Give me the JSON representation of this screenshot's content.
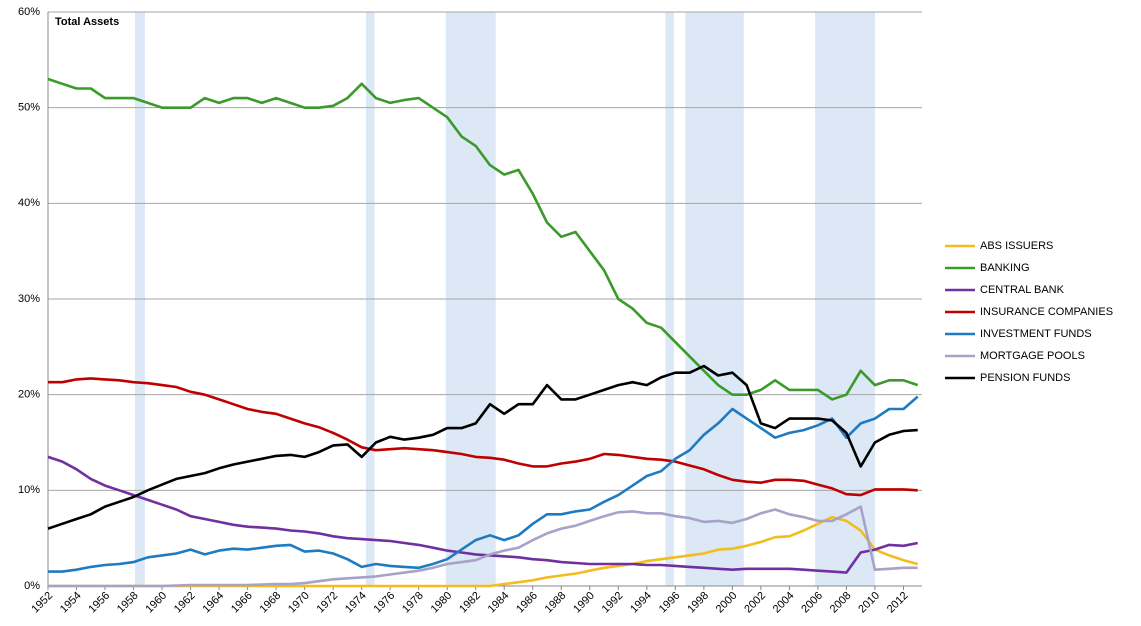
{
  "chart_data": {
    "type": "line",
    "title": "Total Assets",
    "x": [
      1952,
      1953,
      1954,
      1955,
      1956,
      1957,
      1958,
      1959,
      1960,
      1961,
      1962,
      1963,
      1964,
      1965,
      1966,
      1967,
      1968,
      1969,
      1970,
      1971,
      1972,
      1973,
      1974,
      1975,
      1976,
      1977,
      1978,
      1979,
      1980,
      1981,
      1982,
      1983,
      1984,
      1985,
      1986,
      1987,
      1988,
      1989,
      1990,
      1991,
      1992,
      1993,
      1994,
      1995,
      1996,
      1997,
      1998,
      1999,
      2000,
      2001,
      2002,
      2003,
      2004,
      2005,
      2006,
      2007,
      2008,
      2009,
      2010,
      2011,
      2012,
      2013
    ],
    "series": [
      {
        "name": "ABS ISSUERS",
        "color": "#f2bd1d",
        "values": [
          0,
          0,
          0,
          0,
          0,
          0,
          0,
          0,
          0,
          0,
          0,
          0,
          0,
          0,
          0,
          0,
          0,
          0,
          0,
          0,
          0,
          0,
          0,
          0,
          0,
          0,
          0,
          0,
          0,
          0,
          0,
          0,
          0.2,
          0.4,
          0.6,
          0.9,
          1.1,
          1.3,
          1.6,
          1.9,
          2.1,
          2.3,
          2.6,
          2.8,
          3,
          3.2,
          3.4,
          3.8,
          3.9,
          4.2,
          4.6,
          5.1,
          5.2,
          5.8,
          6.5,
          7.2,
          6.8,
          5.8,
          3.8,
          3.2,
          2.7,
          2.3
        ]
      },
      {
        "name": "BANKING",
        "color": "#3a9a2a",
        "values": [
          53,
          52.5,
          52,
          52,
          51,
          51,
          51,
          50.5,
          50,
          50,
          50,
          51,
          50.5,
          51,
          51,
          50.5,
          51,
          50.5,
          50,
          50,
          50.2,
          51,
          52.5,
          51,
          50.5,
          50.8,
          51,
          50,
          49,
          47,
          46,
          44,
          43,
          43.5,
          41,
          38,
          36.5,
          37,
          35,
          33,
          30,
          29,
          27.5,
          27,
          25.5,
          24,
          22.5,
          21,
          20,
          20,
          20.5,
          21.5,
          20.5,
          20.5,
          20.5,
          19.5,
          20,
          22.5,
          21,
          21.5,
          21.5,
          21
        ]
      },
      {
        "name": "CENTRAL BANK",
        "color": "#7030a0",
        "values": [
          13.5,
          13,
          12.2,
          11.2,
          10.5,
          10,
          9.5,
          9,
          8.5,
          8,
          7.3,
          7,
          6.7,
          6.4,
          6.2,
          6.1,
          6,
          5.8,
          5.7,
          5.5,
          5.2,
          5,
          4.9,
          4.8,
          4.7,
          4.5,
          4.3,
          4,
          3.7,
          3.5,
          3.3,
          3.2,
          3.1,
          3,
          2.8,
          2.7,
          2.5,
          2.4,
          2.3,
          2.3,
          2.3,
          2.3,
          2.2,
          2.2,
          2.1,
          2,
          1.9,
          1.8,
          1.7,
          1.8,
          1.8,
          1.8,
          1.8,
          1.7,
          1.6,
          1.5,
          1.4,
          3.5,
          3.8,
          4.3,
          4.2,
          4.5
        ]
      },
      {
        "name": "INSURANCE COMPANIES",
        "color": "#c00000",
        "values": [
          21.3,
          21.3,
          21.6,
          21.7,
          21.6,
          21.5,
          21.3,
          21.2,
          21,
          20.8,
          20.3,
          20,
          19.5,
          19,
          18.5,
          18.2,
          18,
          17.5,
          17,
          16.6,
          16,
          15.3,
          14.5,
          14.2,
          14.3,
          14.4,
          14.3,
          14.2,
          14,
          13.8,
          13.5,
          13.4,
          13.2,
          12.8,
          12.5,
          12.5,
          12.8,
          13,
          13.3,
          13.8,
          13.7,
          13.5,
          13.3,
          13.2,
          13,
          12.6,
          12.2,
          11.6,
          11.1,
          10.9,
          10.8,
          11.1,
          11.1,
          11,
          10.6,
          10.2,
          9.6,
          9.5,
          10.1,
          10.1,
          10.1,
          10
        ]
      },
      {
        "name": "INVESTMENT FUNDS",
        "color": "#1f7bc1",
        "values": [
          1.5,
          1.5,
          1.7,
          2,
          2.2,
          2.3,
          2.5,
          3,
          3.2,
          3.4,
          3.8,
          3.3,
          3.7,
          3.9,
          3.8,
          4,
          4.2,
          4.3,
          3.6,
          3.7,
          3.4,
          2.8,
          2,
          2.3,
          2.1,
          2,
          1.9,
          2.3,
          2.8,
          3.8,
          4.8,
          5.3,
          4.8,
          5.3,
          6.5,
          7.5,
          7.5,
          7.8,
          8,
          8.8,
          9.5,
          10.5,
          11.5,
          12,
          13.3,
          14.2,
          15.8,
          17,
          18.5,
          17.5,
          16.5,
          15.5,
          16,
          16.3,
          16.8,
          17.5,
          15.5,
          17,
          17.5,
          18.5,
          18.5,
          19.8
        ]
      },
      {
        "name": "MORTGAGE POOLS",
        "color": "#a8a2c8",
        "values": [
          0,
          0,
          0,
          0,
          0,
          0,
          0,
          0,
          0,
          0.05,
          0.1,
          0.1,
          0.1,
          0.1,
          0.1,
          0.15,
          0.2,
          0.2,
          0.3,
          0.5,
          0.7,
          0.8,
          0.9,
          1,
          1.2,
          1.4,
          1.6,
          1.9,
          2.3,
          2.5,
          2.7,
          3.3,
          3.7,
          4,
          4.8,
          5.5,
          6,
          6.3,
          6.8,
          7.3,
          7.7,
          7.8,
          7.6,
          7.6,
          7.3,
          7.1,
          6.7,
          6.8,
          6.6,
          7,
          7.6,
          8,
          7.5,
          7.2,
          6.8,
          6.8,
          7.5,
          8.3,
          1.7,
          1.8,
          1.9,
          1.9
        ]
      },
      {
        "name": "PENSION FUNDS",
        "color": "#000000",
        "values": [
          6,
          6.5,
          7,
          7.5,
          8.3,
          8.8,
          9.3,
          10,
          10.6,
          11.2,
          11.5,
          11.8,
          12.3,
          12.7,
          13,
          13.3,
          13.6,
          13.7,
          13.5,
          14,
          14.7,
          14.8,
          13.5,
          15,
          15.6,
          15.3,
          15.5,
          15.8,
          16.5,
          16.5,
          17,
          19,
          18,
          19,
          19,
          21,
          19.5,
          19.5,
          20,
          20.5,
          21,
          21.3,
          21,
          21.8,
          22.3,
          22.3,
          23,
          22,
          22.3,
          21,
          17,
          16.5,
          17.5,
          17.5,
          17.5,
          17.3,
          16,
          12.5,
          15,
          15.8,
          16.2,
          16.3
        ]
      }
    ],
    "shaded_periods": [
      [
        1958.1,
        1958.8
      ],
      [
        1974.3,
        1974.9
      ],
      [
        1979.9,
        1983.4
      ],
      [
        1995.3,
        1995.9
      ],
      [
        1996.7,
        2000.8
      ],
      [
        2005.8,
        2010
      ]
    ],
    "shade_color": "#dce8f5",
    "xlim": [
      1952,
      2013.3
    ],
    "xticks": [
      1952,
      1954,
      1956,
      1958,
      1960,
      1962,
      1964,
      1966,
      1968,
      1970,
      1972,
      1974,
      1976,
      1978,
      1980,
      1982,
      1984,
      1986,
      1988,
      1990,
      1992,
      1994,
      1996,
      1998,
      2000,
      2002,
      2004,
      2006,
      2008,
      2010,
      2012
    ],
    "ylim": [
      0,
      60
    ],
    "yticks": [
      {
        "value": 0,
        "label": "0%"
      },
      {
        "value": 10,
        "label": "10%"
      },
      {
        "value": 20,
        "label": "20%"
      },
      {
        "value": 30,
        "label": "30%"
      },
      {
        "value": 40,
        "label": "40%"
      },
      {
        "value": 50,
        "label": "50%"
      },
      {
        "value": 60,
        "label": "60%"
      }
    ],
    "grid": true,
    "legend": "right"
  }
}
